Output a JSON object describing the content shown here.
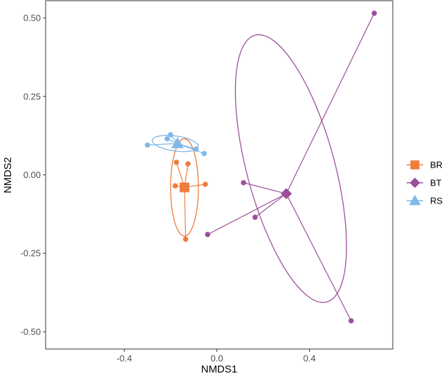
{
  "chart_data": {
    "type": "scatter",
    "title": "",
    "xlabel": "NMDS1",
    "ylabel": "NMDS2",
    "xlim": [
      -0.74,
      0.76
    ],
    "ylim": [
      -0.555,
      0.555
    ],
    "x_ticks": [
      -0.4,
      0.0,
      0.4
    ],
    "x_tick_labels": [
      "-0.4",
      "0.0",
      "0.4"
    ],
    "y_ticks": [
      0.5,
      0.25,
      0.0,
      -0.25,
      -0.5
    ],
    "y_tick_labels": [
      "0.50",
      "0.25",
      "0.00",
      "-0.25",
      "-0.50"
    ],
    "grid": false,
    "legend_position": "right",
    "series": [
      {
        "name": "BR",
        "color": "#F07C3C",
        "marker": "square",
        "centroid": [
          -0.14,
          -0.04
        ],
        "points": [
          [
            -0.175,
            0.04
          ],
          [
            -0.125,
            0.035
          ],
          [
            -0.18,
            -0.035
          ],
          [
            -0.05,
            -0.03
          ],
          [
            -0.135,
            -0.205
          ]
        ],
        "ellipse": {
          "center": [
            -0.14,
            -0.04
          ],
          "rx": 0.06,
          "ry": 0.155,
          "rotation_deg": 0
        }
      },
      {
        "name": "BT",
        "color": "#9B4F9A",
        "marker": "diamond",
        "centroid": [
          0.3,
          -0.06
        ],
        "points": [
          [
            0.68,
            0.515
          ],
          [
            0.115,
            -0.025
          ],
          [
            0.165,
            -0.135
          ],
          [
            -0.04,
            -0.19
          ],
          [
            0.58,
            -0.465
          ]
        ],
        "ellipse": {
          "center": [
            0.32,
            0.02
          ],
          "rx": 0.19,
          "ry": 0.44,
          "rotation_deg": -15
        }
      },
      {
        "name": "RS",
        "color": "#7FB8E8",
        "marker": "triangle",
        "centroid": [
          -0.17,
          0.1
        ],
        "points": [
          [
            -0.3,
            0.095
          ],
          [
            -0.215,
            0.115
          ],
          [
            -0.2,
            0.128
          ],
          [
            -0.09,
            0.082
          ],
          [
            -0.055,
            0.068
          ]
        ],
        "ellipse": {
          "center": [
            -0.18,
            0.1
          ],
          "rx": 0.1,
          "ry": 0.024,
          "rotation_deg": 8
        }
      }
    ]
  }
}
